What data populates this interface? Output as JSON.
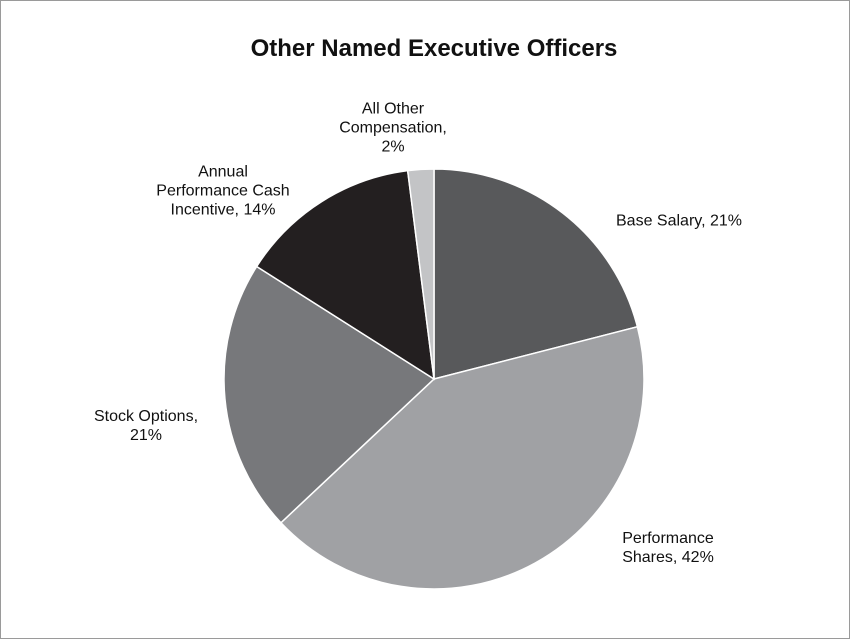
{
  "chart_data": {
    "type": "pie",
    "title": "Other Named Executive Officers",
    "values": [
      21,
      42,
      21,
      14,
      2
    ],
    "value_labels": [
      "Base Salary, 21%",
      "Performance Shares, 42%",
      "Stock Options, 21%",
      "Annual Performance Cash Incentive, 14%",
      "All Other Compensation, 2%"
    ],
    "colors": [
      "#58595b",
      "#a0a1a4",
      "#77787b",
      "#231f20",
      "#c3c4c6"
    ]
  }
}
